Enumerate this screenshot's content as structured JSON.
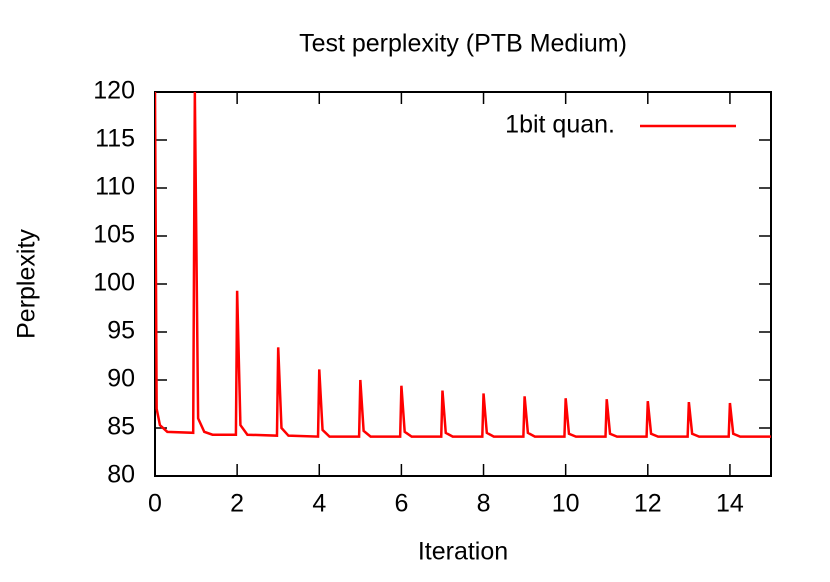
{
  "chart_data": {
    "type": "line",
    "title": "Test perplexity (PTB Medium)",
    "x_label": "Iteration",
    "y_label": "Perplexity",
    "xlim": [
      0,
      15
    ],
    "xticks": [
      0,
      2,
      4,
      6,
      8,
      10,
      12,
      14
    ],
    "ylim": [
      80,
      120
    ],
    "yticks": [
      80,
      85,
      90,
      95,
      100,
      105,
      110,
      115,
      120
    ],
    "legend": "top-right",
    "series": [
      {
        "name": "1bit quan.",
        "color": "#ff0000",
        "x": [
          0,
          0.04,
          0.12,
          0.3,
          0.93,
          0.97,
          1.05,
          1.2,
          1.4,
          1.97,
          2,
          2.08,
          2.25,
          2.97,
          3,
          3.08,
          3.25,
          3.97,
          4,
          4.08,
          4.25,
          4.97,
          5,
          5.08,
          5.25,
          5.97,
          6,
          6.08,
          6.25,
          6.97,
          7,
          7.08,
          7.25,
          7.97,
          8,
          8.08,
          8.25,
          8.97,
          9,
          9.08,
          9.25,
          9.97,
          10,
          10.08,
          10.25,
          10.97,
          11,
          11.08,
          11.25,
          11.97,
          12,
          12.08,
          12.25,
          12.97,
          13,
          13.08,
          13.25,
          13.97,
          14,
          14.08,
          14.25,
          15
        ],
        "values": [
          120,
          87,
          85.3,
          84.6,
          84.5,
          120,
          86,
          84.6,
          84.3,
          84.3,
          99.3,
          85.3,
          84.3,
          84.2,
          93.4,
          85,
          84.2,
          84.1,
          91.1,
          84.8,
          84.1,
          84.1,
          90,
          84.7,
          84.1,
          84.1,
          89.4,
          84.6,
          84.1,
          84.1,
          88.9,
          84.5,
          84.1,
          84.1,
          88.6,
          84.5,
          84.1,
          84.1,
          88.3,
          84.5,
          84.1,
          84.1,
          88.1,
          84.4,
          84.1,
          84.1,
          88,
          84.4,
          84.1,
          84.1,
          87.8,
          84.4,
          84.1,
          84.1,
          87.7,
          84.4,
          84.1,
          84.1,
          87.6,
          84.4,
          84.1,
          84.1
        ]
      }
    ]
  }
}
